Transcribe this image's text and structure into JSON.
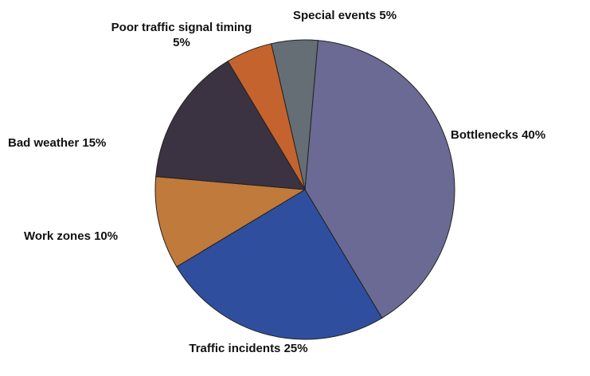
{
  "chart_data": {
    "type": "pie",
    "categories": [
      "Bottlenecks",
      "Traffic incidents",
      "Work zones",
      "Bad weather",
      "Poor traffic signal timing",
      "Special events"
    ],
    "values": [
      40,
      25,
      10,
      15,
      5,
      5
    ],
    "value_labels": [
      "40%",
      "25%",
      "10%",
      "15%",
      "5%",
      "5%"
    ],
    "colors": [
      "#6b6a94",
      "#2f4f9e",
      "#c07a3c",
      "#3b3242",
      "#c4632e",
      "#646e74"
    ]
  }
}
